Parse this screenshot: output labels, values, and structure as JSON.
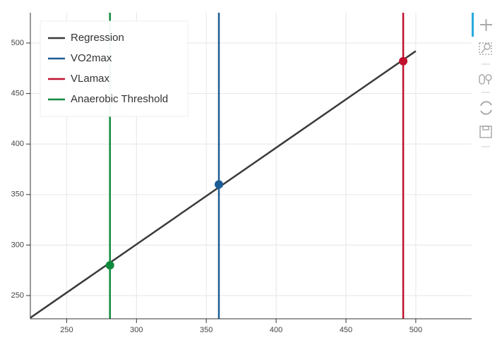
{
  "chart_data": {
    "type": "line",
    "xlim": [
      224,
      540
    ],
    "ylim": [
      227,
      530
    ],
    "xticks": [
      250,
      300,
      350,
      400,
      450,
      500
    ],
    "yticks": [
      250,
      300,
      350,
      400,
      450,
      500
    ],
    "grid": true,
    "legend": "top-left",
    "series": [
      {
        "name": "Regression",
        "color": "#3a3a3a",
        "x": [
          224,
          500
        ],
        "values": [
          228,
          492
        ]
      }
    ],
    "vlines": [
      {
        "name": "VO2max",
        "color": "#1b5c96",
        "x": 359,
        "y": 360
      },
      {
        "name": "VLamax",
        "color": "#c0112e",
        "x": 491,
        "y": 482
      },
      {
        "name": "Anaerobic Threshold",
        "color": "#0f8a3c",
        "x": 281,
        "y": 280
      }
    ]
  }
}
